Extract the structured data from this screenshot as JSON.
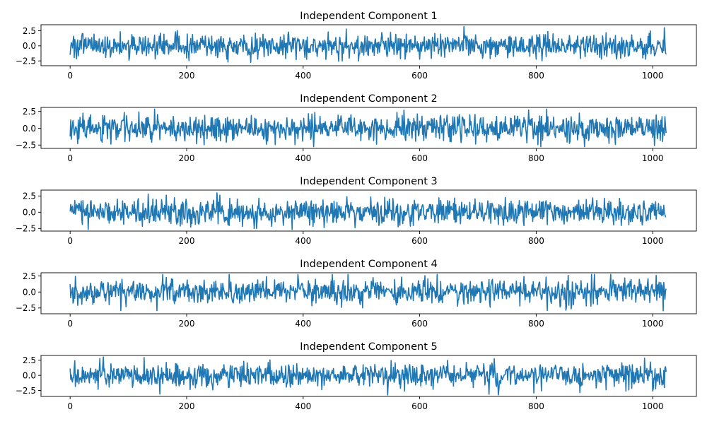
{
  "figure": {
    "line_color": "#1f77b4"
  },
  "chart_data": [
    {
      "type": "line",
      "title": "Independent Component 1",
      "n_points": 1024,
      "xlim": [
        -50,
        1075
      ],
      "ylim": [
        -3.3,
        3.5
      ],
      "xticks": [
        0,
        200,
        400,
        600,
        800,
        1000
      ],
      "yticks": [
        -2.5,
        0.0,
        2.5
      ],
      "ytick_labels": [
        "−2.5",
        "0.0",
        "2.5"
      ],
      "grid": false,
      "series": [
        {
          "seed": 101,
          "std": 1.0
        }
      ]
    },
    {
      "type": "line",
      "title": "Independent Component 2",
      "n_points": 1024,
      "xlim": [
        -50,
        1075
      ],
      "ylim": [
        -3.0,
        3.1
      ],
      "xticks": [
        0,
        200,
        400,
        600,
        800,
        1000
      ],
      "yticks": [
        -2.5,
        0.0,
        2.5
      ],
      "ytick_labels": [
        "−2.5",
        "0.0",
        "2.5"
      ],
      "grid": false,
      "series": [
        {
          "seed": 202,
          "std": 1.0
        }
      ]
    },
    {
      "type": "line",
      "title": "Independent Component 3",
      "n_points": 1024,
      "xlim": [
        -50,
        1075
      ],
      "ylim": [
        -2.9,
        3.4
      ],
      "xticks": [
        0,
        200,
        400,
        600,
        800,
        1000
      ],
      "yticks": [
        -2.5,
        0.0,
        2.5
      ],
      "ytick_labels": [
        "−2.5",
        "0.0",
        "2.5"
      ],
      "grid": false,
      "series": [
        {
          "seed": 303,
          "std": 1.0
        }
      ]
    },
    {
      "type": "line",
      "title": "Independent Component 4",
      "n_points": 1024,
      "xlim": [
        -50,
        1075
      ],
      "ylim": [
        -3.4,
        3.0
      ],
      "xticks": [
        0,
        200,
        400,
        600,
        800,
        1000
      ],
      "yticks": [
        -2.5,
        0.0,
        2.5
      ],
      "ytick_labels": [
        "−2.5",
        "0.0",
        "2.5"
      ],
      "grid": false,
      "series": [
        {
          "seed": 404,
          "std": 1.0
        }
      ]
    },
    {
      "type": "line",
      "title": "Independent Component 5",
      "n_points": 1024,
      "xlim": [
        -50,
        1075
      ],
      "ylim": [
        -3.5,
        3.3
      ],
      "xticks": [
        0,
        200,
        400,
        600,
        800,
        1000
      ],
      "yticks": [
        -2.5,
        0.0,
        2.5
      ],
      "ytick_labels": [
        "−2.5",
        "0.0",
        "2.5"
      ],
      "grid": false,
      "series": [
        {
          "seed": 505,
          "std": 1.0
        }
      ]
    }
  ]
}
